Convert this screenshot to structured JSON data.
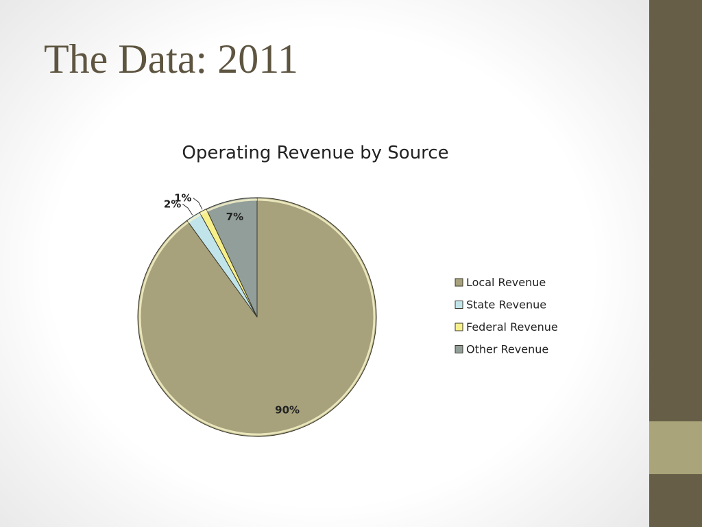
{
  "slide": {
    "title": "The Data: 2011"
  },
  "chart_data": {
    "type": "pie",
    "title": "Operating Revenue by Source",
    "categories": [
      "Local Revenue",
      "State Revenue",
      "Federal Revenue",
      "Other Revenue"
    ],
    "values": [
      90,
      2,
      1,
      7
    ],
    "data_labels": [
      "90%",
      "2%",
      "1%",
      "7%"
    ],
    "colors": [
      "#a7a27c",
      "#c1e4ea",
      "#f7f08a",
      "#929e9a"
    ],
    "legend_placement": "right"
  },
  "theme": {
    "sidebar_color": "#675e47",
    "accent_color": "#a9a47a",
    "title_color": "#5e5541"
  }
}
